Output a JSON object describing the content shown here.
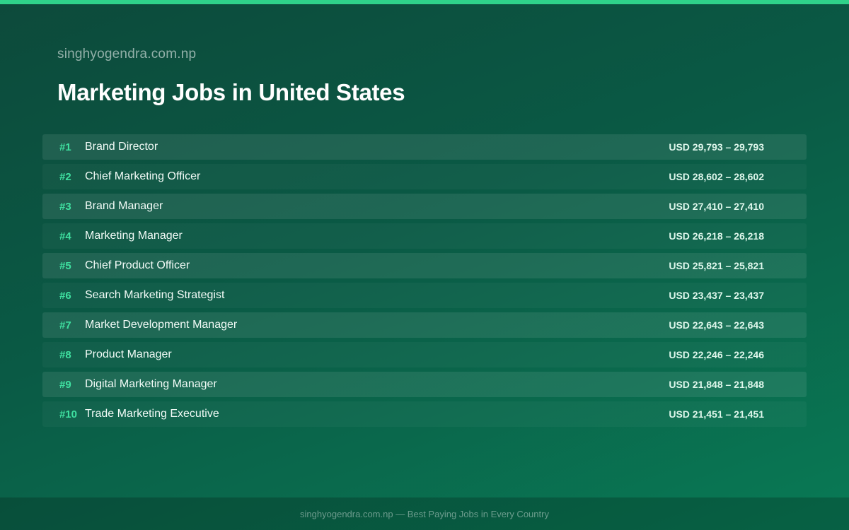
{
  "header": {
    "site_name": "singhyogendra.com.np",
    "title": "Marketing Jobs in United States"
  },
  "jobs": [
    {
      "rank": "#1",
      "title": "Brand Director",
      "salary": "USD 29,793 – 29,793"
    },
    {
      "rank": "#2",
      "title": "Chief Marketing Officer",
      "salary": "USD 28,602 – 28,602"
    },
    {
      "rank": "#3",
      "title": "Brand Manager",
      "salary": "USD 27,410 – 27,410"
    },
    {
      "rank": "#4",
      "title": "Marketing Manager",
      "salary": "USD 26,218 – 26,218"
    },
    {
      "rank": "#5",
      "title": "Chief Product Officer",
      "salary": "USD 25,821 – 25,821"
    },
    {
      "rank": "#6",
      "title": "Search Marketing Strategist",
      "salary": "USD 23,437 – 23,437"
    },
    {
      "rank": "#7",
      "title": "Market Development Manager",
      "salary": "USD 22,643 – 22,643"
    },
    {
      "rank": "#8",
      "title": "Product Manager",
      "salary": "USD 22,246 – 22,246"
    },
    {
      "rank": "#9",
      "title": "Digital Marketing Manager",
      "salary": "USD 21,848 – 21,848"
    },
    {
      "rank": "#10",
      "title": "Trade Marketing Executive",
      "salary": "USD 21,451 – 21,451"
    }
  ],
  "footer": {
    "text": "singhyogendra.com.np — Best Paying Jobs in Every Country"
  },
  "colors": {
    "accent": "#2fd28a",
    "rank": "#3fe0a0",
    "background_start": "#0d4a3b",
    "background_end": "#097a55"
  }
}
